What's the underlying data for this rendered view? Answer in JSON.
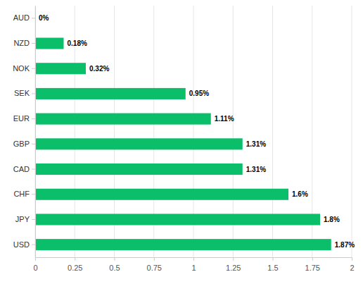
{
  "chart_data": {
    "type": "bar",
    "orientation": "horizontal",
    "categories": [
      "AUD",
      "NZD",
      "NOK",
      "SEK",
      "EUR",
      "GBP",
      "CAD",
      "CHF",
      "JPY",
      "USD"
    ],
    "values": [
      0,
      0.18,
      0.32,
      0.95,
      1.11,
      1.31,
      1.31,
      1.6,
      1.8,
      1.87
    ],
    "value_labels": [
      "0%",
      "0.18%",
      "0.32%",
      "0.95%",
      "1.11%",
      "1.31%",
      "1.31%",
      "1.6%",
      "1.8%",
      "1.87%"
    ],
    "color": "#0bbf6a",
    "xlim": [
      0,
      2
    ],
    "xticks": [
      0,
      0.25,
      0.5,
      0.75,
      1,
      1.25,
      1.5,
      1.75,
      2
    ],
    "grid": true,
    "data_labels": true
  }
}
